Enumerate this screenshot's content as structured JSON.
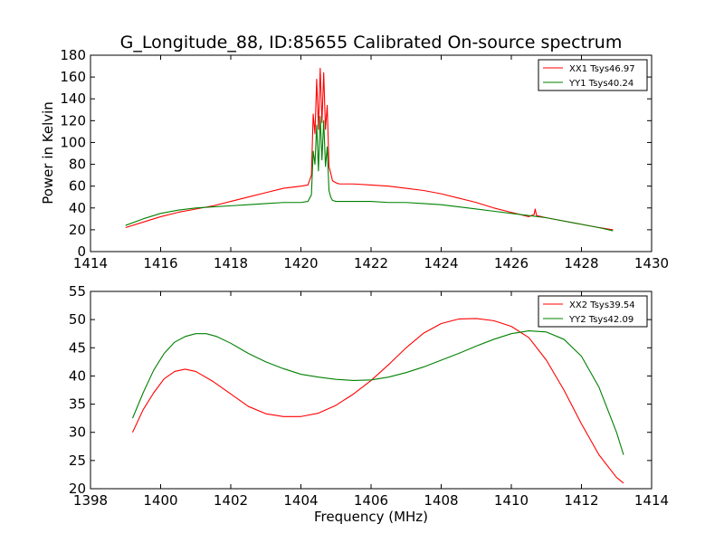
{
  "chart_data": [
    {
      "type": "line",
      "title": "G_Longitude_88, ID:85655 Calibrated On-source spectrum",
      "xlabel": "",
      "ylabel": "Power in Kelvin",
      "xlim": [
        1414,
        1430
      ],
      "ylim": [
        0,
        180
      ],
      "xticks": [
        "1414",
        "1416",
        "1418",
        "1420",
        "1422",
        "1424",
        "1426",
        "1428",
        "1430"
      ],
      "yticks": [
        "0",
        "20",
        "40",
        "60",
        "80",
        "100",
        "120",
        "140",
        "160",
        "180"
      ],
      "legend": "top-right",
      "grid": false,
      "series": [
        {
          "name": "XX1 Tsys46.97",
          "color": "#ff0000",
          "x": [
            1415.0,
            1415.5,
            1416.0,
            1416.5,
            1417.0,
            1417.5,
            1418.0,
            1418.5,
            1419.0,
            1419.5,
            1420.0,
            1420.2,
            1420.3,
            1420.35,
            1420.4,
            1420.45,
            1420.5,
            1420.55,
            1420.6,
            1420.65,
            1420.7,
            1420.75,
            1420.8,
            1420.85,
            1420.9,
            1421.0,
            1421.1,
            1421.3,
            1421.5,
            1422.0,
            1422.5,
            1423.0,
            1423.5,
            1424.0,
            1424.5,
            1425.0,
            1425.5,
            1426.0,
            1426.5,
            1426.65,
            1426.68,
            1426.72,
            1427.0,
            1427.5,
            1428.0,
            1428.5,
            1428.9
          ],
          "y": [
            22,
            27,
            32,
            36,
            39,
            42,
            46,
            50,
            54,
            58,
            60,
            61,
            70,
            126,
            108,
            158,
            112,
            168,
            118,
            164,
            112,
            134,
            78,
            72,
            65,
            63,
            62,
            62,
            62,
            61,
            60,
            58,
            56,
            53,
            49,
            45,
            40,
            36,
            32,
            34,
            39,
            33,
            31,
            28,
            25,
            22,
            20
          ]
        },
        {
          "name": "YY1 Tsys40.24",
          "color": "#008000",
          "x": [
            1415.0,
            1415.5,
            1416.0,
            1416.5,
            1417.0,
            1417.5,
            1418.0,
            1418.5,
            1419.0,
            1419.5,
            1420.0,
            1420.2,
            1420.3,
            1420.35,
            1420.4,
            1420.45,
            1420.5,
            1420.55,
            1420.6,
            1420.65,
            1420.7,
            1420.75,
            1420.8,
            1420.85,
            1420.9,
            1421.0,
            1421.1,
            1421.3,
            1421.5,
            1422.0,
            1422.5,
            1423.0,
            1423.5,
            1424.0,
            1424.5,
            1425.0,
            1425.5,
            1426.0,
            1426.5,
            1427.0,
            1427.5,
            1428.0,
            1428.5,
            1428.9
          ],
          "y": [
            24,
            30,
            35,
            38,
            40,
            41,
            42,
            43,
            44,
            45,
            45,
            46,
            52,
            92,
            80,
            116,
            74,
            124,
            84,
            120,
            78,
            96,
            56,
            50,
            47,
            46,
            46,
            46,
            46,
            46,
            45,
            45,
            44,
            43,
            41,
            39,
            37,
            35,
            33,
            31,
            28,
            25,
            22,
            19
          ]
        }
      ]
    },
    {
      "type": "line",
      "title": "",
      "xlabel": "Frequency (MHz)",
      "ylabel": "",
      "xlim": [
        1398,
        1414
      ],
      "ylim": [
        20,
        55
      ],
      "xticks": [
        "1398",
        "1400",
        "1402",
        "1404",
        "1406",
        "1408",
        "1410",
        "1412",
        "1414"
      ],
      "yticks": [
        "20",
        "25",
        "30",
        "35",
        "40",
        "45",
        "50",
        "55"
      ],
      "legend": "top-right",
      "grid": false,
      "series": [
        {
          "name": "XX2 Tsys39.54",
          "color": "#ff0000",
          "x": [
            1399.2,
            1399.5,
            1399.8,
            1400.1,
            1400.4,
            1400.7,
            1401.0,
            1401.5,
            1402.0,
            1402.5,
            1403.0,
            1403.5,
            1404.0,
            1404.5,
            1405.0,
            1405.5,
            1406.0,
            1406.5,
            1407.0,
            1407.5,
            1408.0,
            1408.5,
            1409.0,
            1409.5,
            1410.0,
            1410.5,
            1411.0,
            1411.5,
            1412.0,
            1412.5,
            1413.0,
            1413.2
          ],
          "y": [
            30.0,
            34.0,
            37.0,
            39.5,
            40.8,
            41.2,
            40.8,
            39.0,
            36.8,
            34.6,
            33.3,
            32.8,
            32.8,
            33.4,
            34.8,
            36.8,
            39.2,
            42.0,
            45.0,
            47.6,
            49.3,
            50.1,
            50.2,
            49.8,
            48.8,
            46.8,
            42.8,
            37.5,
            31.5,
            26.0,
            22.0,
            21.0
          ]
        },
        {
          "name": "YY2 Tsys42.09",
          "color": "#008000",
          "x": [
            1399.2,
            1399.5,
            1399.8,
            1400.1,
            1400.4,
            1400.7,
            1401.0,
            1401.3,
            1401.6,
            1402.0,
            1402.5,
            1403.0,
            1403.5,
            1404.0,
            1404.5,
            1405.0,
            1405.5,
            1406.0,
            1406.5,
            1407.0,
            1407.5,
            1408.0,
            1408.5,
            1409.0,
            1409.5,
            1410.0,
            1410.5,
            1411.0,
            1411.5,
            1412.0,
            1412.5,
            1413.0,
            1413.2
          ],
          "y": [
            32.5,
            37.0,
            41.0,
            44.0,
            46.0,
            47.0,
            47.5,
            47.5,
            47.0,
            45.8,
            44.0,
            42.5,
            41.3,
            40.3,
            39.8,
            39.4,
            39.2,
            39.3,
            39.8,
            40.6,
            41.6,
            42.8,
            44.0,
            45.3,
            46.5,
            47.5,
            48.0,
            47.8,
            46.5,
            43.5,
            38.0,
            30.0,
            26.0
          ]
        }
      ]
    }
  ]
}
